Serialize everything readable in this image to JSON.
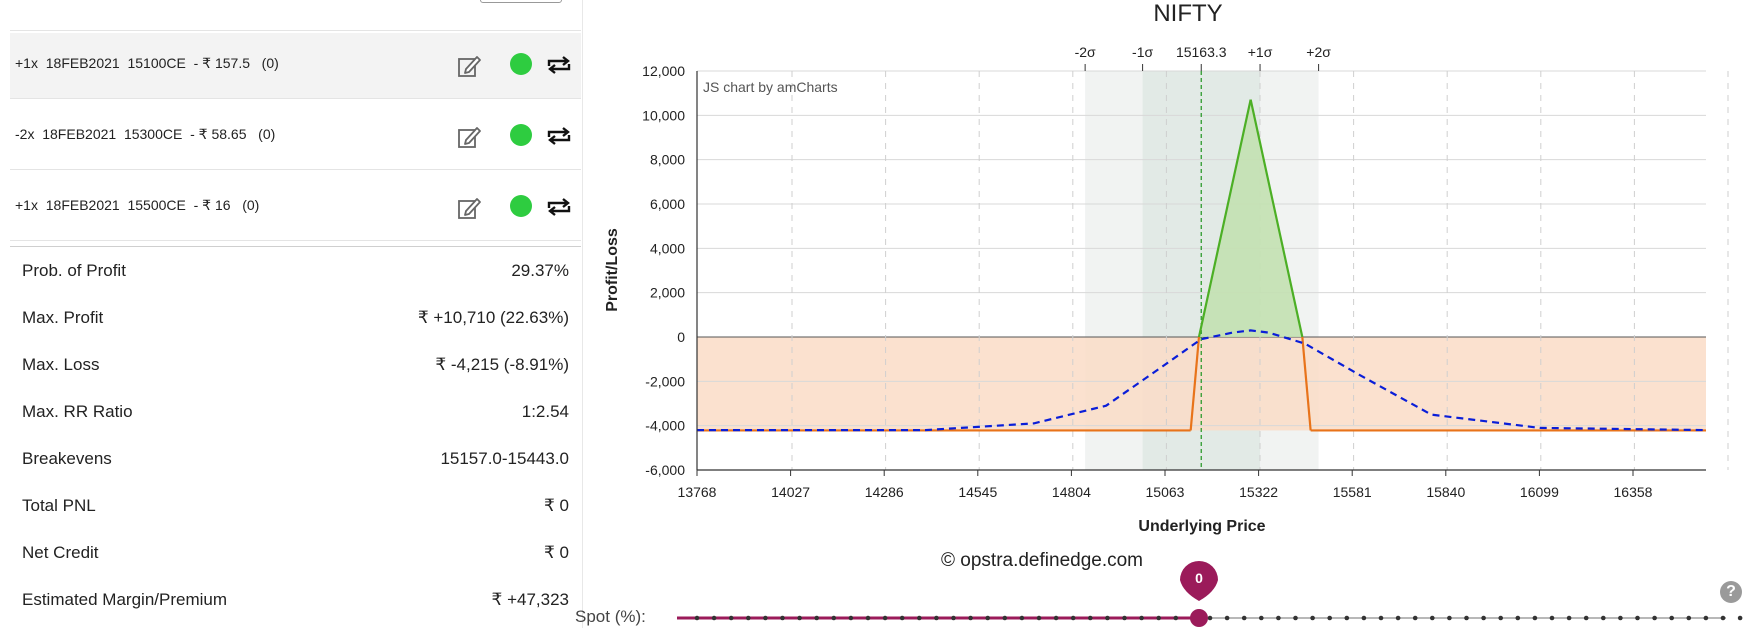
{
  "legs": [
    {
      "text": "+1x  18FEB2021  15100CE  - ₹ 157.5   (0)",
      "selected": true
    },
    {
      "text": "-2x  18FEB2021  15300CE  - ₹ 58.65   (0)",
      "selected": false
    },
    {
      "text": "+1x  18FEB2021  15500CE  - ₹ 16   (0)",
      "selected": false
    }
  ],
  "stats": [
    {
      "label": "Prob. of Profit",
      "value": "29.37%"
    },
    {
      "label": "Max. Profit",
      "value": "₹ +10,710 (22.63%)"
    },
    {
      "label": "Max. Loss",
      "value": "₹ -4,215 (-8.91%)"
    },
    {
      "label": "Max. RR Ratio",
      "value": "1:2.54"
    },
    {
      "label": "Breakevens",
      "value": "15157.0-15443.0"
    },
    {
      "label": "Total PNL",
      "value": "₹ 0"
    },
    {
      "label": "Net Credit",
      "value": "₹ 0"
    },
    {
      "label": "Estimated Margin/Premium",
      "value": "₹ +47,323"
    }
  ],
  "colors": {
    "profit_line": "#4caf25",
    "profit_fill": "#c3e1b1",
    "loss_line": "#e8731a",
    "loss_fill": "#fadcc7",
    "expected_curve": "#0a1ed8",
    "sigma1_band": "#e2eae6",
    "sigma2_band": "#f1f3f2",
    "spot_line": "#2e9b2e",
    "status_dot": "#2ecc40",
    "slider": "#9b1b5a"
  },
  "icons": {
    "edit": "edit-icon",
    "switch": "repeat-icon",
    "help": "help-icon"
  },
  "chart_data": {
    "type": "line",
    "title": "NIFTY",
    "watermark": "JS chart by amCharts",
    "xlabel": "Underlying Price",
    "ylabel": "Profit/Loss",
    "xlim": [
      13768,
      16560
    ],
    "ylim": [
      -6000,
      12000
    ],
    "x_ticks": [
      13768,
      14027,
      14286,
      14545,
      14804,
      15063,
      15322,
      15581,
      15840,
      16099,
      16358
    ],
    "y_ticks": [
      -6000,
      -4000,
      -2000,
      0,
      2000,
      4000,
      6000,
      8000,
      10000,
      12000
    ],
    "y_tick_labels": [
      "-6,000",
      "-4,000",
      "-2,000",
      "0",
      "2,000",
      "4,000",
      "6,000",
      "8,000",
      "10,000",
      "12,000"
    ],
    "spot": {
      "label": "15163.3",
      "x": 15163.3
    },
    "sigma_lines": [
      {
        "label": "-2σ",
        "x": 14842
      },
      {
        "label": "-1σ",
        "x": 15001
      },
      {
        "label": "+1σ",
        "x": 15326
      },
      {
        "label": "+2σ",
        "x": 15488
      }
    ],
    "series": [
      {
        "type": "line",
        "x": [
          13768,
          15134,
          15157,
          15300,
          15443,
          15466,
          16560
        ],
        "y": [
          -4215,
          -4215,
          0,
          10710,
          0,
          -4215,
          -4215
        ]
      },
      {
        "type": "line",
        "dashed": true,
        "x": [
          13768,
          14400,
          14700,
          14900,
          15050,
          15163,
          15250,
          15300,
          15350,
          15450,
          15600,
          15800,
          16100,
          16560
        ],
        "y": [
          -4200,
          -4200,
          -3900,
          -3100,
          -1400,
          -100,
          200,
          300,
          200,
          -300,
          -1700,
          -3500,
          -4100,
          -4200
        ]
      }
    ]
  },
  "footer": {
    "copyright": "© opstra.definedge.com",
    "spot_label": "Spot (%):",
    "slider_value": "0",
    "help": "?"
  }
}
